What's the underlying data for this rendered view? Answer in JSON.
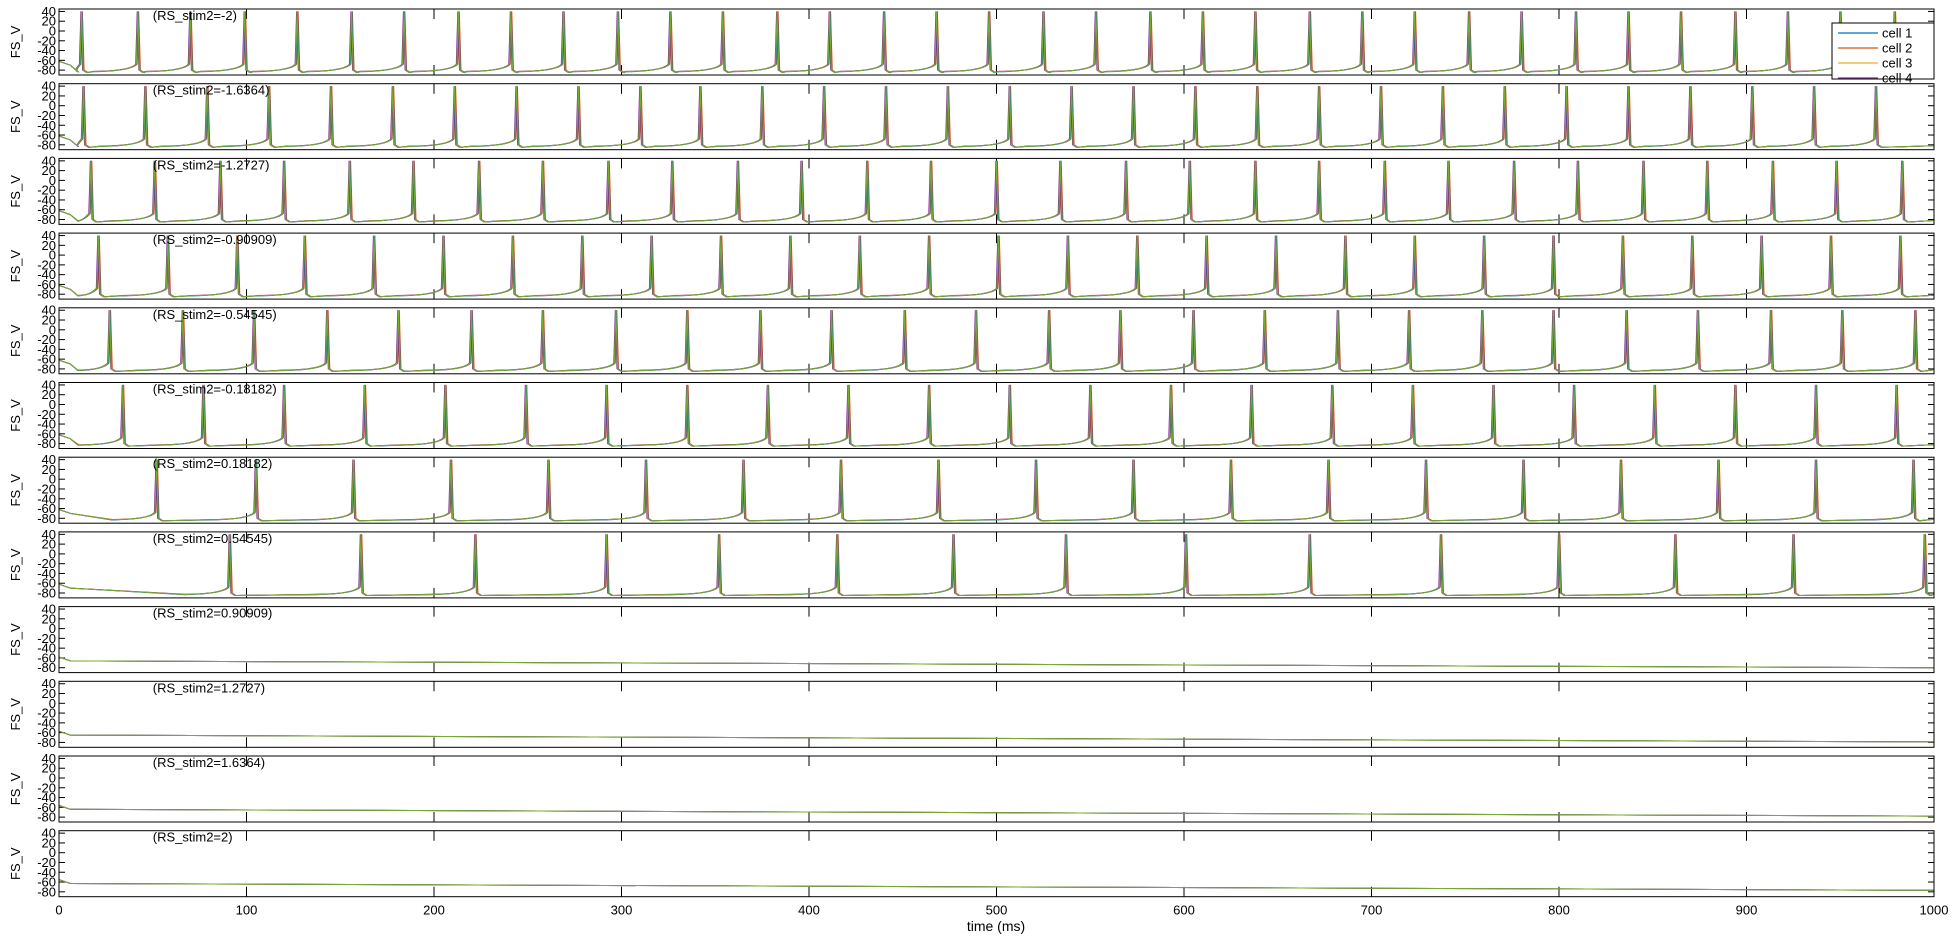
{
  "figure": {
    "xlabel": "time (ms)",
    "xticks": [
      "0",
      "100",
      "200",
      "300",
      "400",
      "500",
      "600",
      "700",
      "800",
      "900",
      "1000"
    ]
  },
  "colors": {
    "cell1": "#0072BD",
    "cell2": "#D95319",
    "cell3": "#EDB120",
    "cell4": "#7E2F8E",
    "trace_top": "#77AC30"
  },
  "chart_data": [
    {
      "type": "line",
      "title": "(RS_stim2=-2)",
      "ylabel": "FS_V",
      "xlim": [
        0,
        1000
      ],
      "ylim": [
        -90,
        45
      ],
      "yticks": [
        "40",
        "20",
        "0",
        "-20",
        "-40",
        "-60",
        "-80"
      ],
      "legend": [
        "cell 1",
        "cell 2",
        "cell 3",
        "cell 4"
      ],
      "legend_position": "top-right",
      "spike_times_ms": [
        12,
        42,
        70,
        99,
        127,
        156,
        184,
        213,
        241,
        269,
        298,
        326,
        354,
        383,
        411,
        440,
        468,
        496,
        525,
        553,
        582,
        610,
        638,
        667,
        695,
        723,
        752,
        780,
        809,
        837,
        865,
        894,
        922,
        950,
        979
      ],
      "peak_mV": 40,
      "rest_mV": -84
    },
    {
      "type": "line",
      "title": "(RS_stim2=-1.6364)",
      "ylabel": "FS_V",
      "xlim": [
        0,
        1000
      ],
      "ylim": [
        -90,
        45
      ],
      "yticks": [
        "40",
        "20",
        "0",
        "-20",
        "-40",
        "-60",
        "-80"
      ],
      "spike_times_ms": [
        13,
        46,
        79,
        112,
        145,
        178,
        211,
        244,
        277,
        310,
        342,
        375,
        408,
        441,
        474,
        507,
        540,
        573,
        606,
        639,
        672,
        705,
        738,
        771,
        804,
        837,
        870,
        903,
        936,
        969
      ],
      "peak_mV": 40,
      "rest_mV": -84
    },
    {
      "type": "line",
      "title": "(RS_stim2=-1.2727)",
      "ylabel": "FS_V",
      "xlim": [
        0,
        1000
      ],
      "ylim": [
        -90,
        45
      ],
      "yticks": [
        "40",
        "20",
        "0",
        "-20",
        "-40",
        "-60",
        "-80"
      ],
      "spike_times_ms": [
        17,
        51,
        86,
        120,
        155,
        189,
        224,
        258,
        293,
        327,
        362,
        396,
        431,
        465,
        500,
        534,
        569,
        603,
        638,
        672,
        707,
        741,
        776,
        810,
        845,
        879,
        914,
        948,
        983
      ],
      "peak_mV": 40,
      "rest_mV": -84
    },
    {
      "type": "line",
      "title": "(RS_stim2=-0.90909)",
      "ylabel": "FS_V",
      "xlim": [
        0,
        1000
      ],
      "ylim": [
        -90,
        45
      ],
      "yticks": [
        "40",
        "20",
        "0",
        "-20",
        "-40",
        "-60",
        "-80"
      ],
      "spike_times_ms": [
        21,
        58,
        95,
        131,
        168,
        205,
        242,
        279,
        316,
        353,
        390,
        427,
        464,
        501,
        538,
        575,
        612,
        649,
        686,
        723,
        760,
        797,
        834,
        871,
        908,
        945,
        982
      ],
      "peak_mV": 40,
      "rest_mV": -84
    },
    {
      "type": "line",
      "title": "(RS_stim2=-0.54545)",
      "ylabel": "FS_V",
      "xlim": [
        0,
        1000
      ],
      "ylim": [
        -90,
        45
      ],
      "yticks": [
        "40",
        "20",
        "0",
        "-20",
        "-40",
        "-60",
        "-80"
      ],
      "spike_times_ms": [
        27,
        66,
        104,
        143,
        181,
        220,
        258,
        297,
        335,
        374,
        412,
        451,
        489,
        528,
        566,
        605,
        643,
        682,
        720,
        759,
        797,
        836,
        874,
        913,
        951,
        990
      ],
      "peak_mV": 40,
      "rest_mV": -84
    },
    {
      "type": "line",
      "title": "(RS_stim2=-0.18182)",
      "ylabel": "FS_V",
      "xlim": [
        0,
        1000
      ],
      "ylim": [
        -90,
        45
      ],
      "yticks": [
        "40",
        "20",
        "0",
        "-20",
        "-40",
        "-60",
        "-80"
      ],
      "spike_times_ms": [
        34,
        77,
        120,
        163,
        206,
        249,
        292,
        335,
        378,
        421,
        464,
        507,
        550,
        593,
        636,
        679,
        722,
        765,
        808,
        851,
        894,
        937,
        980
      ],
      "peak_mV": 40,
      "rest_mV": -84
    },
    {
      "type": "line",
      "title": "(RS_stim2=0.18182)",
      "ylabel": "FS_V",
      "xlim": [
        0,
        1000
      ],
      "ylim": [
        -90,
        45
      ],
      "yticks": [
        "40",
        "20",
        "0",
        "-20",
        "-40",
        "-60",
        "-80"
      ],
      "spike_times_ms": [
        52,
        105,
        157,
        209,
        261,
        313,
        365,
        417,
        469,
        521,
        573,
        625,
        677,
        729,
        781,
        833,
        885,
        937,
        989
      ],
      "peak_mV": 40,
      "rest_mV": -84
    },
    {
      "type": "line",
      "title": "(RS_stim2=0.54545)",
      "ylabel": "FS_V",
      "xlim": [
        0,
        1000
      ],
      "ylim": [
        -90,
        45
      ],
      "yticks": [
        "40",
        "20",
        "0",
        "-20",
        "-40",
        "-60",
        "-80"
      ],
      "spike_times_ms": [
        91,
        161,
        222,
        292,
        352,
        415,
        477,
        537,
        601,
        667,
        737,
        800,
        862,
        925,
        995
      ],
      "peak_mV": 40,
      "rest_mV": -84
    },
    {
      "type": "line",
      "title": "(RS_stim2=0.90909)",
      "ylabel": "FS_V",
      "xlim": [
        0,
        1000
      ],
      "ylim": [
        -90,
        45
      ],
      "yticks": [
        "40",
        "20",
        "0",
        "-20",
        "-40",
        "-60",
        "-80"
      ],
      "spike_times_ms": [],
      "rest_mV": -80
    },
    {
      "type": "line",
      "title": "(RS_stim2=1.2727)",
      "ylabel": "FS_V",
      "xlim": [
        0,
        1000
      ],
      "ylim": [
        -90,
        45
      ],
      "yticks": [
        "40",
        "20",
        "0",
        "-20",
        "-40",
        "-60",
        "-80"
      ],
      "spike_times_ms": [],
      "rest_mV": -79
    },
    {
      "type": "line",
      "title": "(RS_stim2=1.6364)",
      "ylabel": "FS_V",
      "xlim": [
        0,
        1000
      ],
      "ylim": [
        -90,
        45
      ],
      "yticks": [
        "40",
        "20",
        "0",
        "-20",
        "-40",
        "-60",
        "-80"
      ],
      "spike_times_ms": [],
      "rest_mV": -78
    },
    {
      "type": "line",
      "title": "(RS_stim2=2)",
      "ylabel": "FS_V",
      "xlim": [
        0,
        1000
      ],
      "ylim": [
        -90,
        45
      ],
      "yticks": [
        "40",
        "20",
        "0",
        "-20",
        "-40",
        "-60",
        "-80"
      ],
      "spike_times_ms": [],
      "rest_mV": -77
    }
  ]
}
